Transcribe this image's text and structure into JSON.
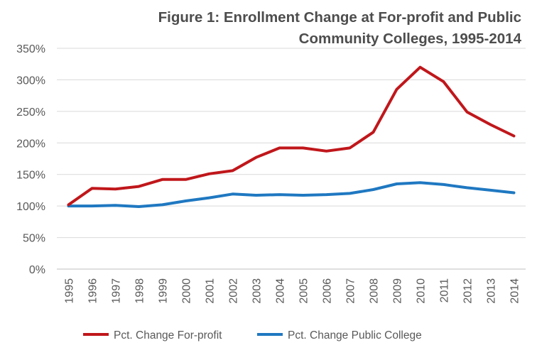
{
  "chart_data": {
    "type": "line",
    "title": "Figure 1: Enrollment Change at For-profit and Public Community Colleges, 1995-2014",
    "title_lines": [
      "Figure 1: Enrollment Change at For-profit and Public",
      "Community Colleges, 1995-2014"
    ],
    "xlabel": "",
    "ylabel": "",
    "ylim": [
      0,
      350
    ],
    "yticks": [
      0,
      50,
      100,
      150,
      200,
      250,
      300,
      350
    ],
    "ytick_labels": [
      "0%",
      "50%",
      "100%",
      "150%",
      "200%",
      "250%",
      "300%",
      "350%"
    ],
    "categories": [
      "1995",
      "1996",
      "1997",
      "1998",
      "1999",
      "2000",
      "2001",
      "2002",
      "2003",
      "2004",
      "2005",
      "2006",
      "2007",
      "2008",
      "2009",
      "2010",
      "2011",
      "2012",
      "2013",
      "2014"
    ],
    "grid": "horizontal",
    "legend_position": "bottom",
    "series": [
      {
        "name": "Pct. Change For-profit",
        "color": "#c0171b",
        "values": [
          102,
          128,
          127,
          131,
          142,
          142,
          151,
          156,
          177,
          192,
          192,
          187,
          192,
          217,
          285,
          320,
          297,
          249,
          229,
          211
        ]
      },
      {
        "name": "Pct. Change Public College",
        "color": "#1f78c1",
        "values": [
          100,
          100,
          101,
          99,
          102,
          108,
          113,
          119,
          117,
          118,
          117,
          118,
          120,
          126,
          135,
          137,
          134,
          129,
          125,
          121
        ]
      }
    ]
  }
}
